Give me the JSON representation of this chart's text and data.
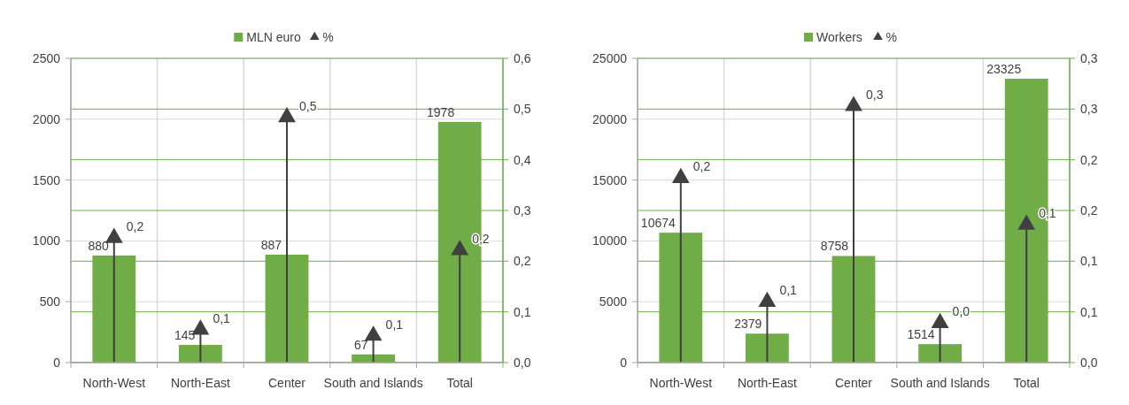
{
  "chart_data": [
    {
      "type": "bar",
      "categories": [
        "North-West",
        "North-East",
        "Center",
        "South and Islands",
        "Total"
      ],
      "series": [
        {
          "name": "MLN euro",
          "color": "#70ad47",
          "values": [
            880,
            145,
            887,
            67,
            1978
          ],
          "value_labels": [
            "880",
            "145",
            "887",
            "67",
            "1978"
          ]
        },
        {
          "name": "%",
          "type": "lollipop",
          "axis": "y2",
          "marker": "triangle",
          "color": "#404040",
          "values": [
            0.246,
            0.065,
            0.484,
            0.053,
            0.222
          ],
          "value_labels": [
            "0,2",
            "0,1",
            "0,5",
            "0,1",
            "0,2"
          ]
        }
      ],
      "ylim": [
        0,
        2500
      ],
      "yticks": [
        0,
        500,
        1000,
        1500,
        2000,
        2500
      ],
      "y2lim": [
        0,
        0.6
      ],
      "y2ticks": [
        {
          "value": 0,
          "label": "0,0"
        },
        {
          "value": 0.1,
          "label": "0,1"
        },
        {
          "value": 0.2,
          "label": "0,2"
        },
        {
          "value": 0.3,
          "label": "0,3"
        },
        {
          "value": 0.4,
          "label": "0,4"
        },
        {
          "value": 0.5,
          "label": "0,5"
        },
        {
          "value": 0.6,
          "label": "0,6"
        }
      ],
      "grid": true,
      "legend": "top"
    },
    {
      "type": "bar",
      "categories": [
        "North-West",
        "North-East",
        "Center",
        "South and Islands",
        "Total"
      ],
      "series": [
        {
          "name": "Workers",
          "color": "#70ad47",
          "values": [
            10674,
            2379,
            8758,
            1514,
            23325
          ],
          "value_labels": [
            "10674",
            "2379",
            "8758",
            "1514",
            "23325"
          ]
        },
        {
          "name": "%",
          "type": "lollipop",
          "axis": "y2",
          "marker": "triangle",
          "color": "#404040",
          "values": [
            0.182,
            0.06,
            0.253,
            0.039,
            0.136
          ],
          "value_labels": [
            "0,2",
            "0,1",
            "0,3",
            "0,0",
            "0,1"
          ]
        }
      ],
      "ylim": [
        0,
        25000
      ],
      "yticks": [
        0,
        5000,
        10000,
        15000,
        20000,
        25000
      ],
      "y2lim": [
        0,
        0.3
      ],
      "y2ticks": [
        {
          "value": 0,
          "label": "0,0"
        },
        {
          "value": 0.05,
          "label": "0,1"
        },
        {
          "value": 0.1,
          "label": "0,1"
        },
        {
          "value": 0.15,
          "label": "0,2"
        },
        {
          "value": 0.2,
          "label": "0,2"
        },
        {
          "value": 0.25,
          "label": "0,3"
        },
        {
          "value": 0.3,
          "label": "0,3"
        }
      ],
      "grid": true,
      "legend": "top"
    }
  ]
}
